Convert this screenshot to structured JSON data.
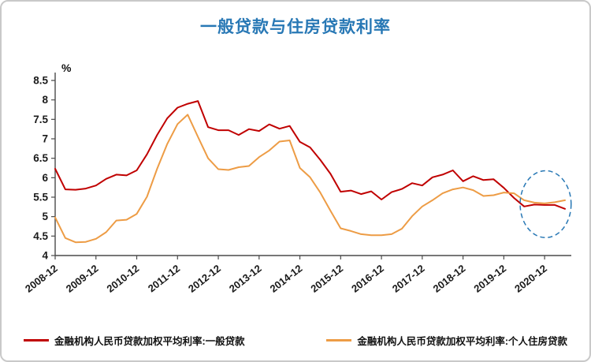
{
  "header": {
    "title": "一般贷款与住房贷款利率",
    "title_color": "#2878B5"
  },
  "chart_data": {
    "type": "line",
    "title": "一般贷款与住房贷款利率",
    "unit_label": "%",
    "ylim": [
      4,
      8.5
    ],
    "y_tick_step": 0.5,
    "y_tick_labels": [
      "4",
      "4.5",
      "5",
      "5.5",
      "6",
      "6.5",
      "7",
      "7.5",
      "8",
      "8.5"
    ],
    "x_tick_every": 4,
    "x_tick_labels": [
      "2008-12",
      "2009-12",
      "2010-12",
      "2011-12",
      "2012-12",
      "2013-12",
      "2014-12",
      "2015-12",
      "2016-12",
      "2017-12",
      "2018-12",
      "2019-12",
      "2020-12"
    ],
    "grid": false,
    "legend_position": "bottom",
    "axis_color": "#4a4a4a",
    "tick_label_color": "#1a1a1a",
    "x": [
      "2008-12",
      "2009-03",
      "2009-06",
      "2009-09",
      "2009-12",
      "2010-03",
      "2010-06",
      "2010-09",
      "2010-12",
      "2011-03",
      "2011-06",
      "2011-09",
      "2011-12",
      "2012-03",
      "2012-06",
      "2012-09",
      "2012-12",
      "2013-03",
      "2013-06",
      "2013-09",
      "2013-12",
      "2014-03",
      "2014-06",
      "2014-09",
      "2014-12",
      "2015-03",
      "2015-06",
      "2015-09",
      "2015-12",
      "2016-03",
      "2016-06",
      "2016-09",
      "2016-12",
      "2017-03",
      "2017-06",
      "2017-09",
      "2017-12",
      "2018-03",
      "2018-06",
      "2018-09",
      "2018-12",
      "2019-03",
      "2019-06",
      "2019-09",
      "2019-12",
      "2020-03",
      "2020-06",
      "2020-09",
      "2020-12",
      "2021-03",
      "2021-06"
    ],
    "series": [
      {
        "name": "金融机构人民币贷款加权平均利率:一般贷款",
        "color": "#C00000",
        "values": [
          6.23,
          5.7,
          5.69,
          5.72,
          5.8,
          5.97,
          6.08,
          6.06,
          6.19,
          6.6,
          7.1,
          7.53,
          7.8,
          7.9,
          7.97,
          7.3,
          7.22,
          7.22,
          7.1,
          7.25,
          7.2,
          7.37,
          7.26,
          7.33,
          6.92,
          6.78,
          6.46,
          6.1,
          5.64,
          5.67,
          5.58,
          5.65,
          5.44,
          5.63,
          5.71,
          5.86,
          5.8,
          6.01,
          6.08,
          6.19,
          5.91,
          6.04,
          5.94,
          5.96,
          5.74,
          5.48,
          5.26,
          5.31,
          5.3,
          5.3,
          5.2
        ]
      },
      {
        "name": "金融机构人民币贷款加权平均利率:个人住房贷款",
        "color": "#ED9C45",
        "values": [
          4.98,
          4.45,
          4.34,
          4.35,
          4.43,
          4.6,
          4.9,
          4.92,
          5.07,
          5.51,
          6.23,
          6.87,
          7.38,
          7.62,
          7.05,
          6.5,
          6.22,
          6.2,
          6.27,
          6.3,
          6.53,
          6.7,
          6.93,
          6.96,
          6.25,
          6.01,
          5.62,
          5.15,
          4.7,
          4.63,
          4.55,
          4.52,
          4.52,
          4.55,
          4.69,
          5.01,
          5.26,
          5.42,
          5.6,
          5.7,
          5.75,
          5.68,
          5.53,
          5.55,
          5.62,
          5.6,
          5.42,
          5.36,
          5.34,
          5.37,
          5.42
        ]
      }
    ],
    "annotation": {
      "shape": "dashed-ellipse",
      "center_index": 48.1,
      "center_value": 5.32,
      "radius_index": 2.5,
      "radius_value": 0.86,
      "color": "#2878B5"
    }
  },
  "legend": {
    "items": [
      {
        "label": "金融机构人民币贷款加权平均利率:一般贷款",
        "color": "#C00000"
      },
      {
        "label": "金融机构人民币贷款加权平均利率:个人住房贷款",
        "color": "#ED9C45"
      }
    ]
  }
}
